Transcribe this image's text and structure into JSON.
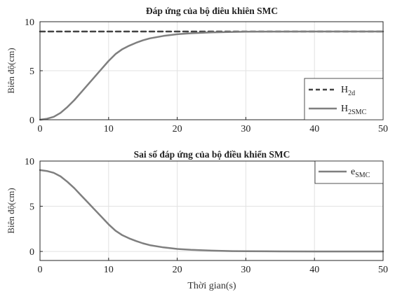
{
  "chart_data": [
    {
      "type": "line",
      "title": "Đáp ứng của bộ điêu khiên SMC",
      "xlabel": "",
      "ylabel": "Biên độ(cm)",
      "xlim": [
        0,
        50
      ],
      "ylim": [
        0,
        10
      ],
      "xticks": [
        "0",
        "10",
        "20",
        "30",
        "40",
        "50"
      ],
      "yticks": [
        "0",
        "5",
        "10"
      ],
      "grid": true,
      "legend_position": "bottom-right",
      "series": [
        {
          "name": "H2d",
          "label_main": "H",
          "label_sub": "2d",
          "style": "dashed",
          "color": "#444444",
          "x": [
            0,
            50
          ],
          "y": [
            9,
            9
          ]
        },
        {
          "name": "H2SMC",
          "label_main": "H",
          "label_sub": "2SMC",
          "style": "solid",
          "color": "#7f7f7f",
          "x": [
            0,
            1,
            2,
            3,
            4,
            5,
            6,
            7,
            8,
            9,
            10,
            11,
            12,
            13,
            14,
            15,
            16,
            18,
            20,
            22,
            25,
            28,
            30,
            35,
            40,
            45,
            50
          ],
          "y": [
            0.0,
            0.1,
            0.3,
            0.7,
            1.3,
            2.0,
            2.8,
            3.6,
            4.4,
            5.2,
            6.0,
            6.7,
            7.2,
            7.55,
            7.85,
            8.1,
            8.3,
            8.55,
            8.72,
            8.82,
            8.91,
            8.96,
            8.98,
            8.99,
            9.0,
            9.0,
            9.0
          ]
        }
      ]
    },
    {
      "type": "line",
      "title": "Sai số đáp ứng của bộ điều khiển SMC",
      "xlabel": "Thời gian(s)",
      "ylabel": "Biên độ(cm)",
      "xlim": [
        0,
        50
      ],
      "ylim": [
        -1,
        10
      ],
      "xticks": [
        "0",
        "10",
        "20",
        "30",
        "40",
        "50"
      ],
      "yticks": [
        "0",
        "5",
        "10"
      ],
      "grid": true,
      "legend_position": "top-right",
      "series": [
        {
          "name": "eSMC",
          "label_main": "e",
          "label_sub": "SMC",
          "style": "solid",
          "color": "#7f7f7f",
          "x": [
            0,
            1,
            2,
            3,
            4,
            5,
            6,
            7,
            8,
            9,
            10,
            11,
            12,
            13,
            14,
            15,
            16,
            18,
            20,
            22,
            25,
            28,
            30,
            35,
            40,
            45,
            50
          ],
          "y": [
            9.0,
            8.9,
            8.7,
            8.3,
            7.7,
            7.0,
            6.2,
            5.4,
            4.6,
            3.8,
            3.0,
            2.3,
            1.8,
            1.45,
            1.15,
            0.9,
            0.7,
            0.45,
            0.28,
            0.18,
            0.09,
            0.04,
            0.02,
            0.01,
            0.0,
            0.0,
            0.0
          ]
        }
      ]
    }
  ]
}
